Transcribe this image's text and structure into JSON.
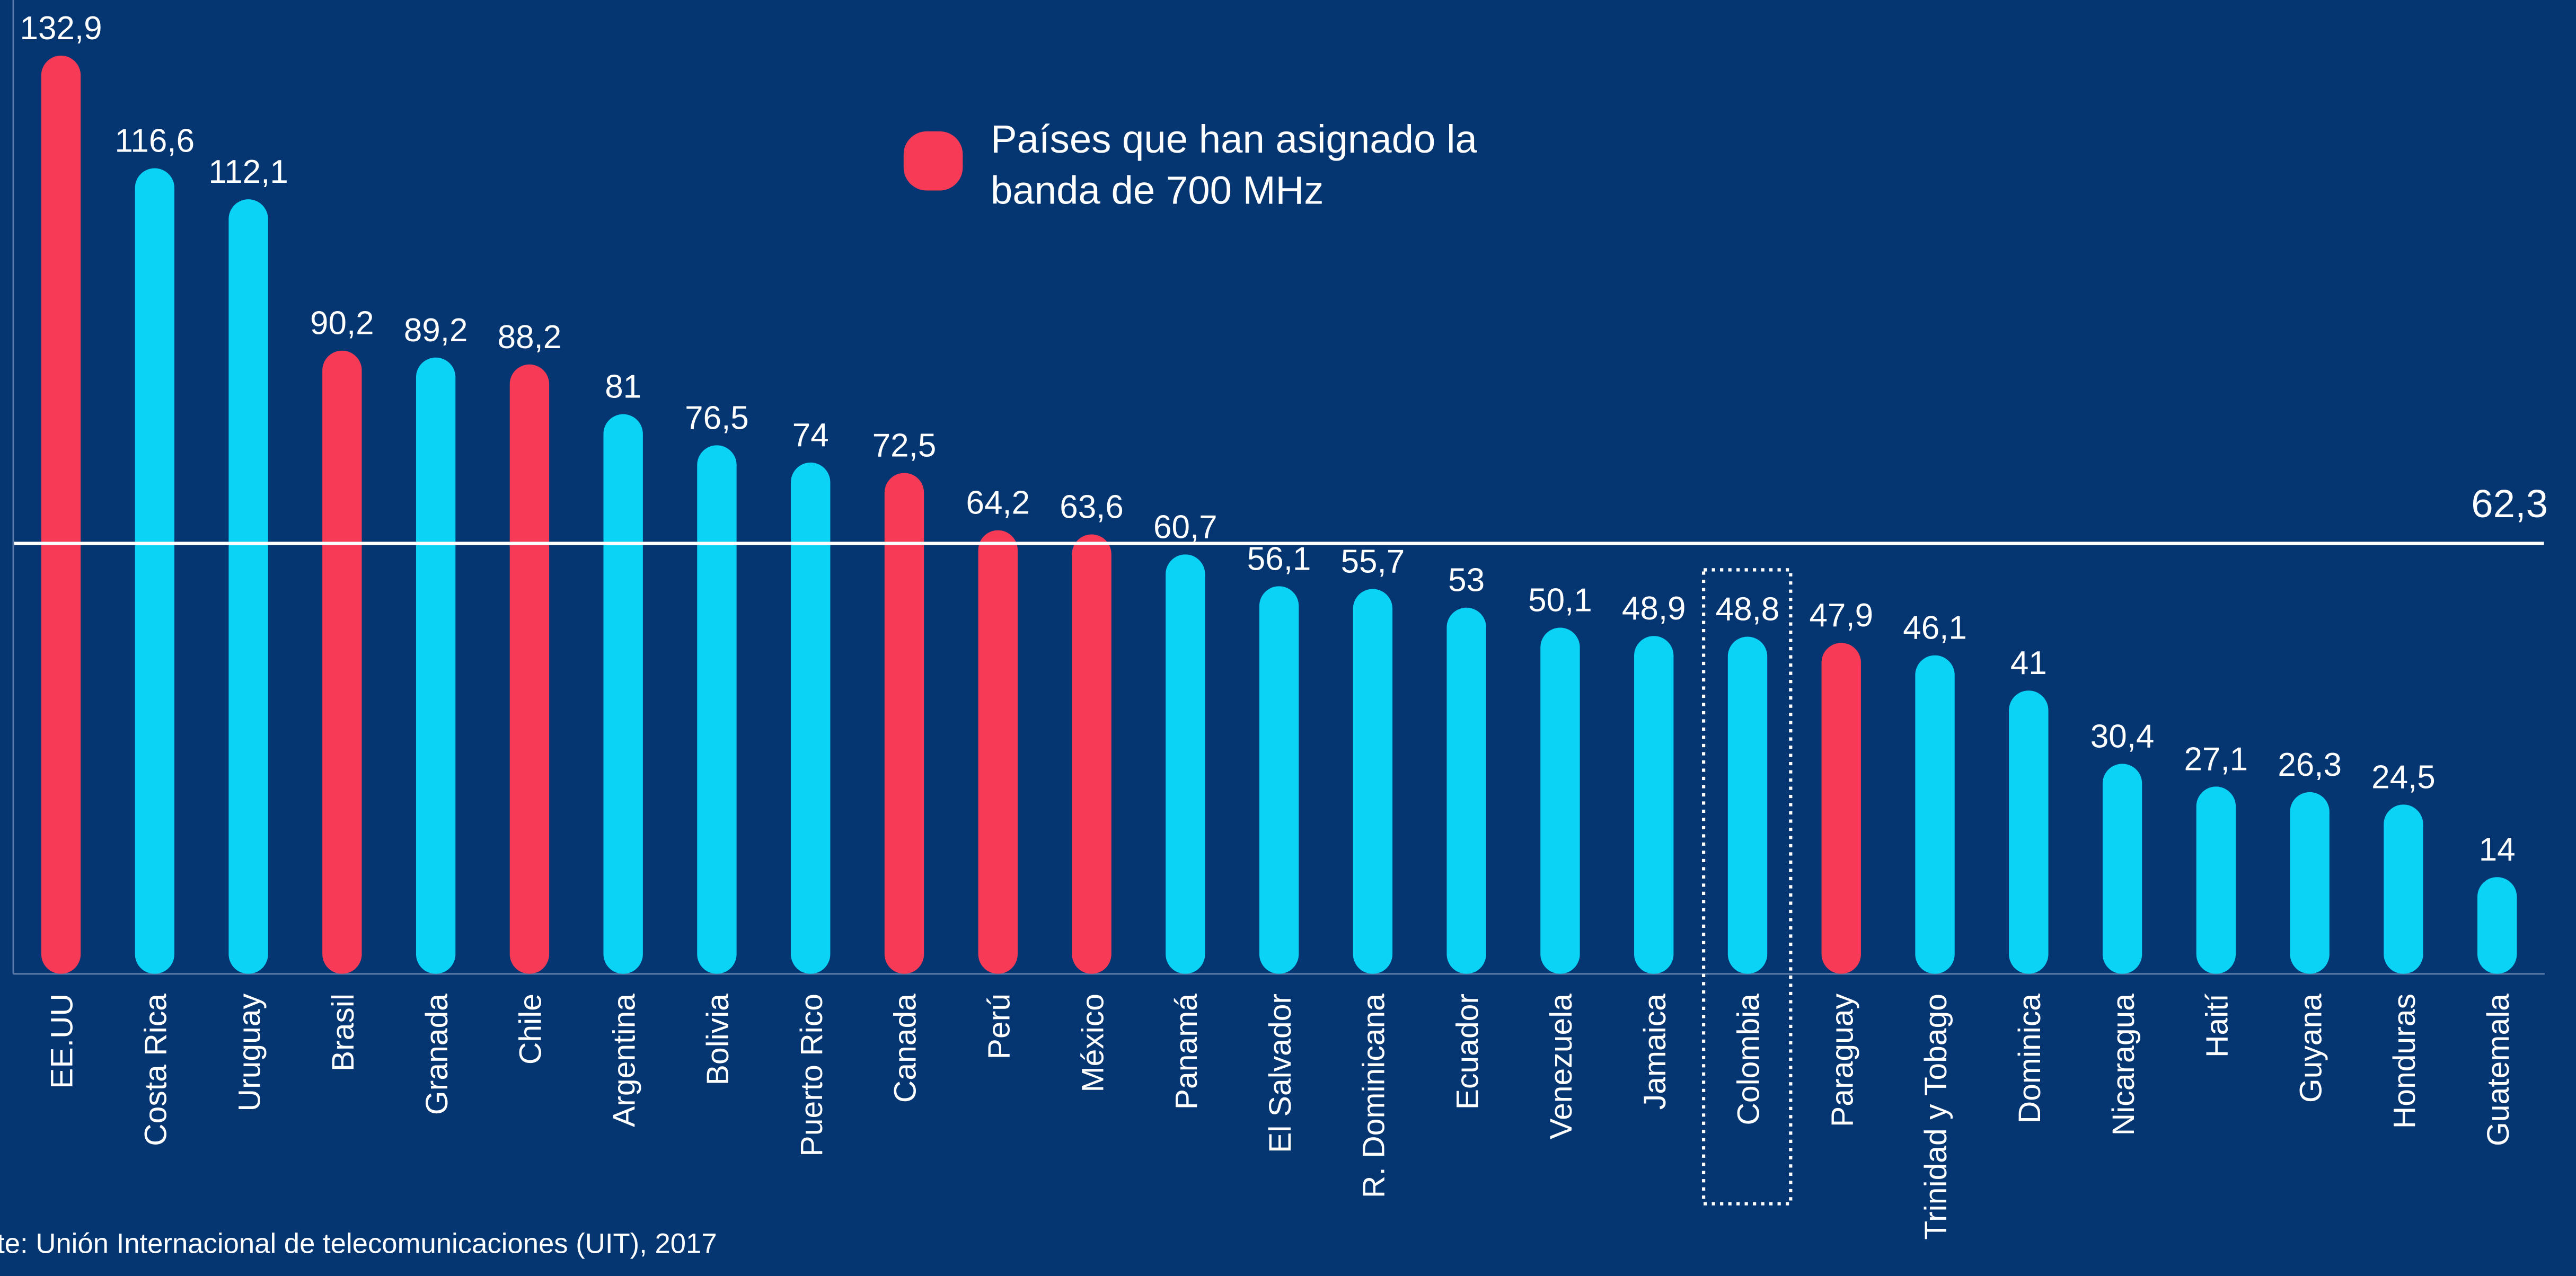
{
  "chart_data": {
    "type": "bar",
    "categories": [
      "EE.UU",
      "Costa Rica",
      "Uruguay",
      "Brasil",
      "Granada",
      "Chile",
      "Argentina",
      "Bolivia",
      "Puerto Rico",
      "Canada",
      "Perú",
      "México",
      "Panamá",
      "El Salvador",
      "R. Dominicana",
      "Ecuador",
      "Venezuela",
      "Jamaica",
      "Colombia",
      "Paraguay",
      "Trinidad y Tobago",
      "Dominica",
      "Nicaragua",
      "Haití",
      "Guyana",
      "Honduras",
      "Guatemala"
    ],
    "values": [
      132.9,
      116.6,
      112.1,
      90.2,
      89.2,
      88.2,
      81,
      76.5,
      74,
      72.5,
      64.2,
      63.6,
      60.7,
      56.1,
      55.7,
      53,
      50.1,
      48.9,
      48.8,
      47.9,
      46.1,
      41,
      30.4,
      27.1,
      26.3,
      24.5,
      14
    ],
    "value_labels": [
      "132,9",
      "116,6",
      "112,1",
      "90,2",
      "89,2",
      "88,2",
      "81",
      "76,5",
      "74",
      "72,5",
      "64,2",
      "63,6",
      "60,7",
      "56,1",
      "55,7",
      "53",
      "50,1",
      "48,9",
      "48,8",
      "47,9",
      "46,1",
      "41",
      "30,4",
      "27,1",
      "26,3",
      "24,5",
      "14"
    ],
    "colors": [
      "#f73a56",
      "#0bd3f5",
      "#0bd3f5",
      "#f73a56",
      "#0bd3f5",
      "#f73a56",
      "#0bd3f5",
      "#0bd3f5",
      "#0bd3f5",
      "#f73a56",
      "#f73a56",
      "#f73a56",
      "#0bd3f5",
      "#0bd3f5",
      "#0bd3f5",
      "#0bd3f5",
      "#0bd3f5",
      "#0bd3f5",
      "#0bd3f5",
      "#f73a56",
      "#0bd3f5",
      "#0bd3f5",
      "#0bd3f5",
      "#0bd3f5",
      "#0bd3f5",
      "#0bd3f5",
      "#0bd3f5"
    ],
    "ylim": [
      0,
      140
    ],
    "legend": {
      "lines": [
        "Países que han asignado la",
        "banda de 700 MHz"
      ],
      "color": "#f73a56"
    },
    "reference_line": {
      "value": 62.3,
      "label": "62,3"
    },
    "source": "te: Unión Internacional de telecomunicaciones (UIT), 2017"
  }
}
